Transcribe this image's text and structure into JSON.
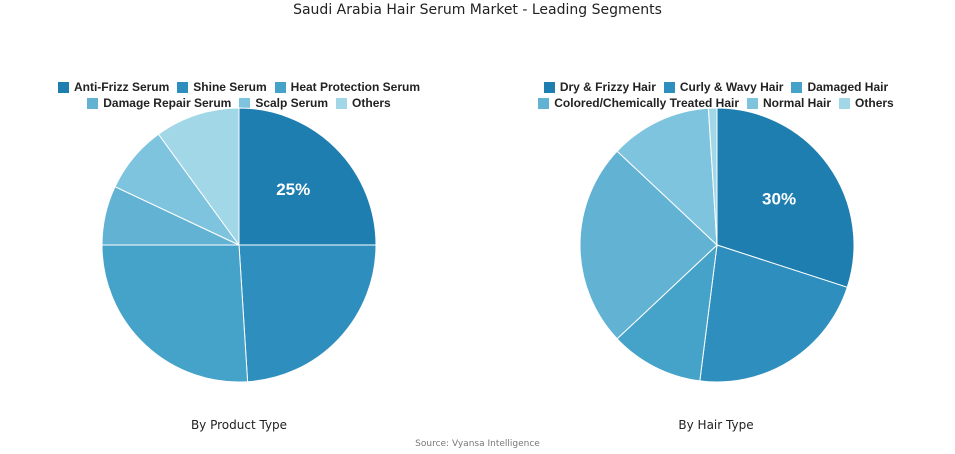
{
  "title": "Saudi Arabia Hair Serum Market - Leading Segments",
  "source": "Source: Vyansa Intelligence",
  "chart_data": [
    {
      "type": "pie",
      "caption": "By Product Type",
      "categories": [
        "Anti-Frizz Serum",
        "Shine Serum",
        "Heat Protection Serum",
        "Damage Repair Serum",
        "Scalp Serum",
        "Others"
      ],
      "values": [
        25,
        24,
        26,
        7,
        8,
        10
      ],
      "colors": [
        "#1f7eb0",
        "#2e8fbe",
        "#45a2c8",
        "#62b2d3",
        "#7fc4de",
        "#a2d7e7"
      ],
      "data_labels": [
        "25%",
        "",
        "",
        "",
        "",
        ""
      ],
      "legend_break_after": 3
    },
    {
      "type": "pie",
      "caption": "By Hair Type",
      "categories": [
        "Dry & Frizzy Hair",
        "Curly & Wavy Hair",
        "Damaged Hair",
        "Colored/Chemically Treated Hair",
        "Normal Hair",
        "Others"
      ],
      "values": [
        30,
        22,
        11,
        24,
        12,
        1
      ],
      "colors": [
        "#1f7eb0",
        "#2e8fbe",
        "#45a2c8",
        "#62b2d3",
        "#7fc4de",
        "#a2d7e7"
      ],
      "data_labels": [
        "30%",
        "",
        "",
        "",
        "",
        ""
      ],
      "legend_break_after": 3
    }
  ]
}
